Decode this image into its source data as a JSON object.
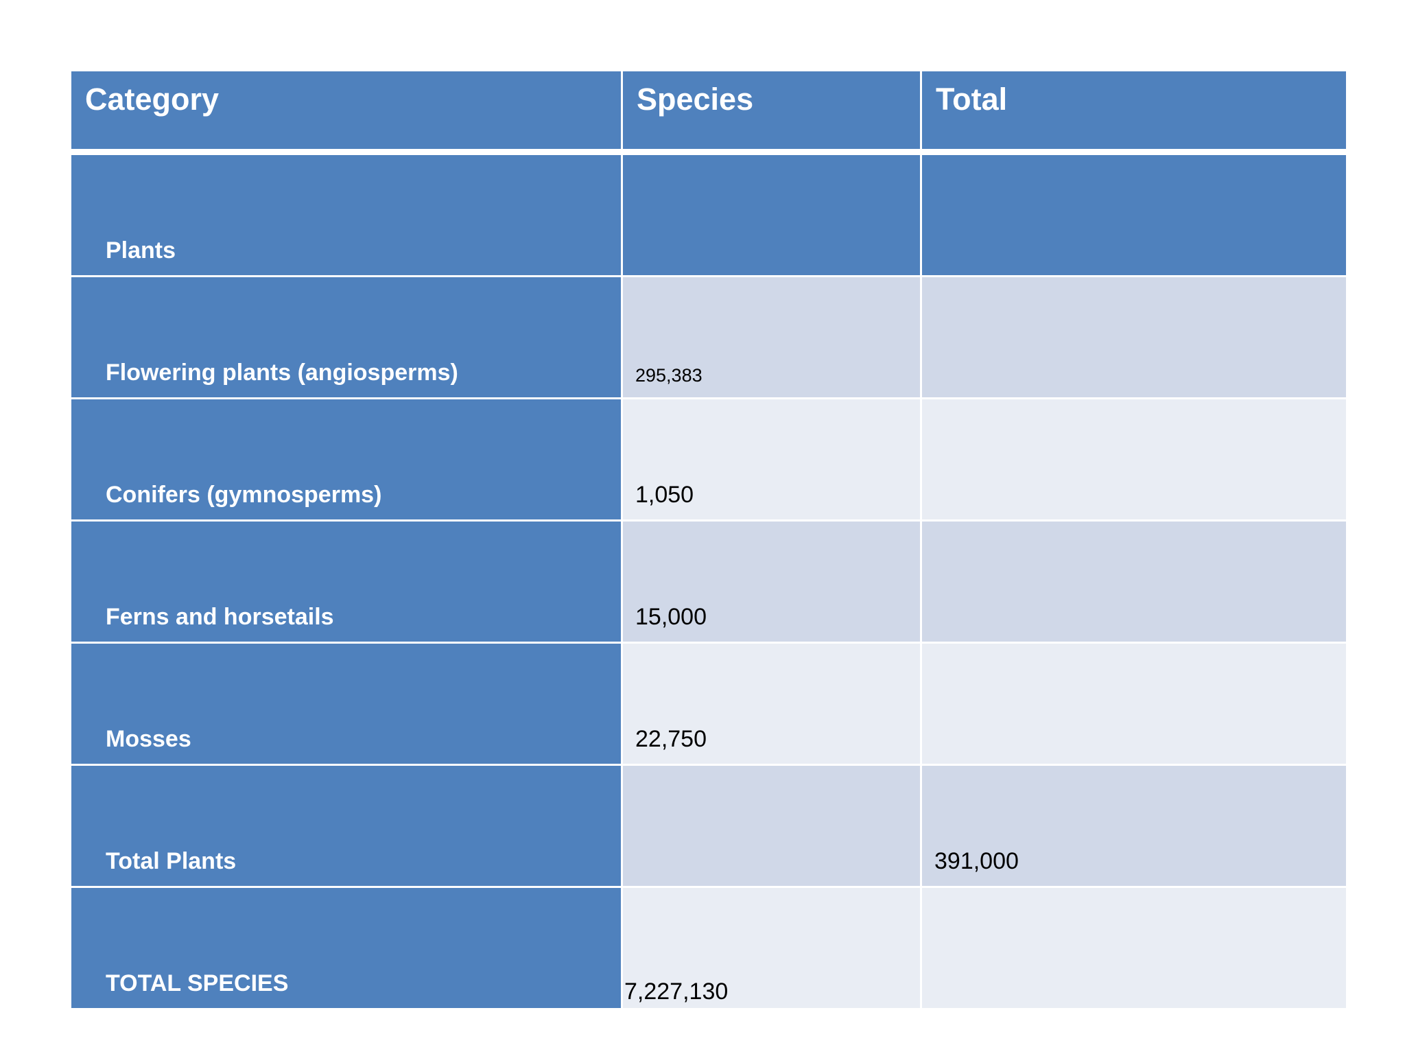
{
  "table": {
    "headers": [
      "Category",
      "Species",
      "Total"
    ],
    "rows": [
      {
        "category": "Plants",
        "species": "",
        "total": ""
      },
      {
        "category": "Flowering plants (angiosperms)",
        "species": "295,383",
        "total": ""
      },
      {
        "category": "Conifers (gymnosperms)",
        "species": "1,050",
        "total": ""
      },
      {
        "category": "Ferns and horsetails",
        "species": "15,000",
        "total": ""
      },
      {
        "category": "Mosses",
        "species": "22,750",
        "total": ""
      },
      {
        "category": "Total Plants",
        "species": "",
        "total": "391,000"
      },
      {
        "category": "TOTAL SPECIES",
        "species": "7,227,130",
        "total": ""
      }
    ]
  },
  "colors": {
    "header_fill": "#4f81bd",
    "band_dark": "#d0d8e8",
    "band_light": "#e9edf4"
  }
}
